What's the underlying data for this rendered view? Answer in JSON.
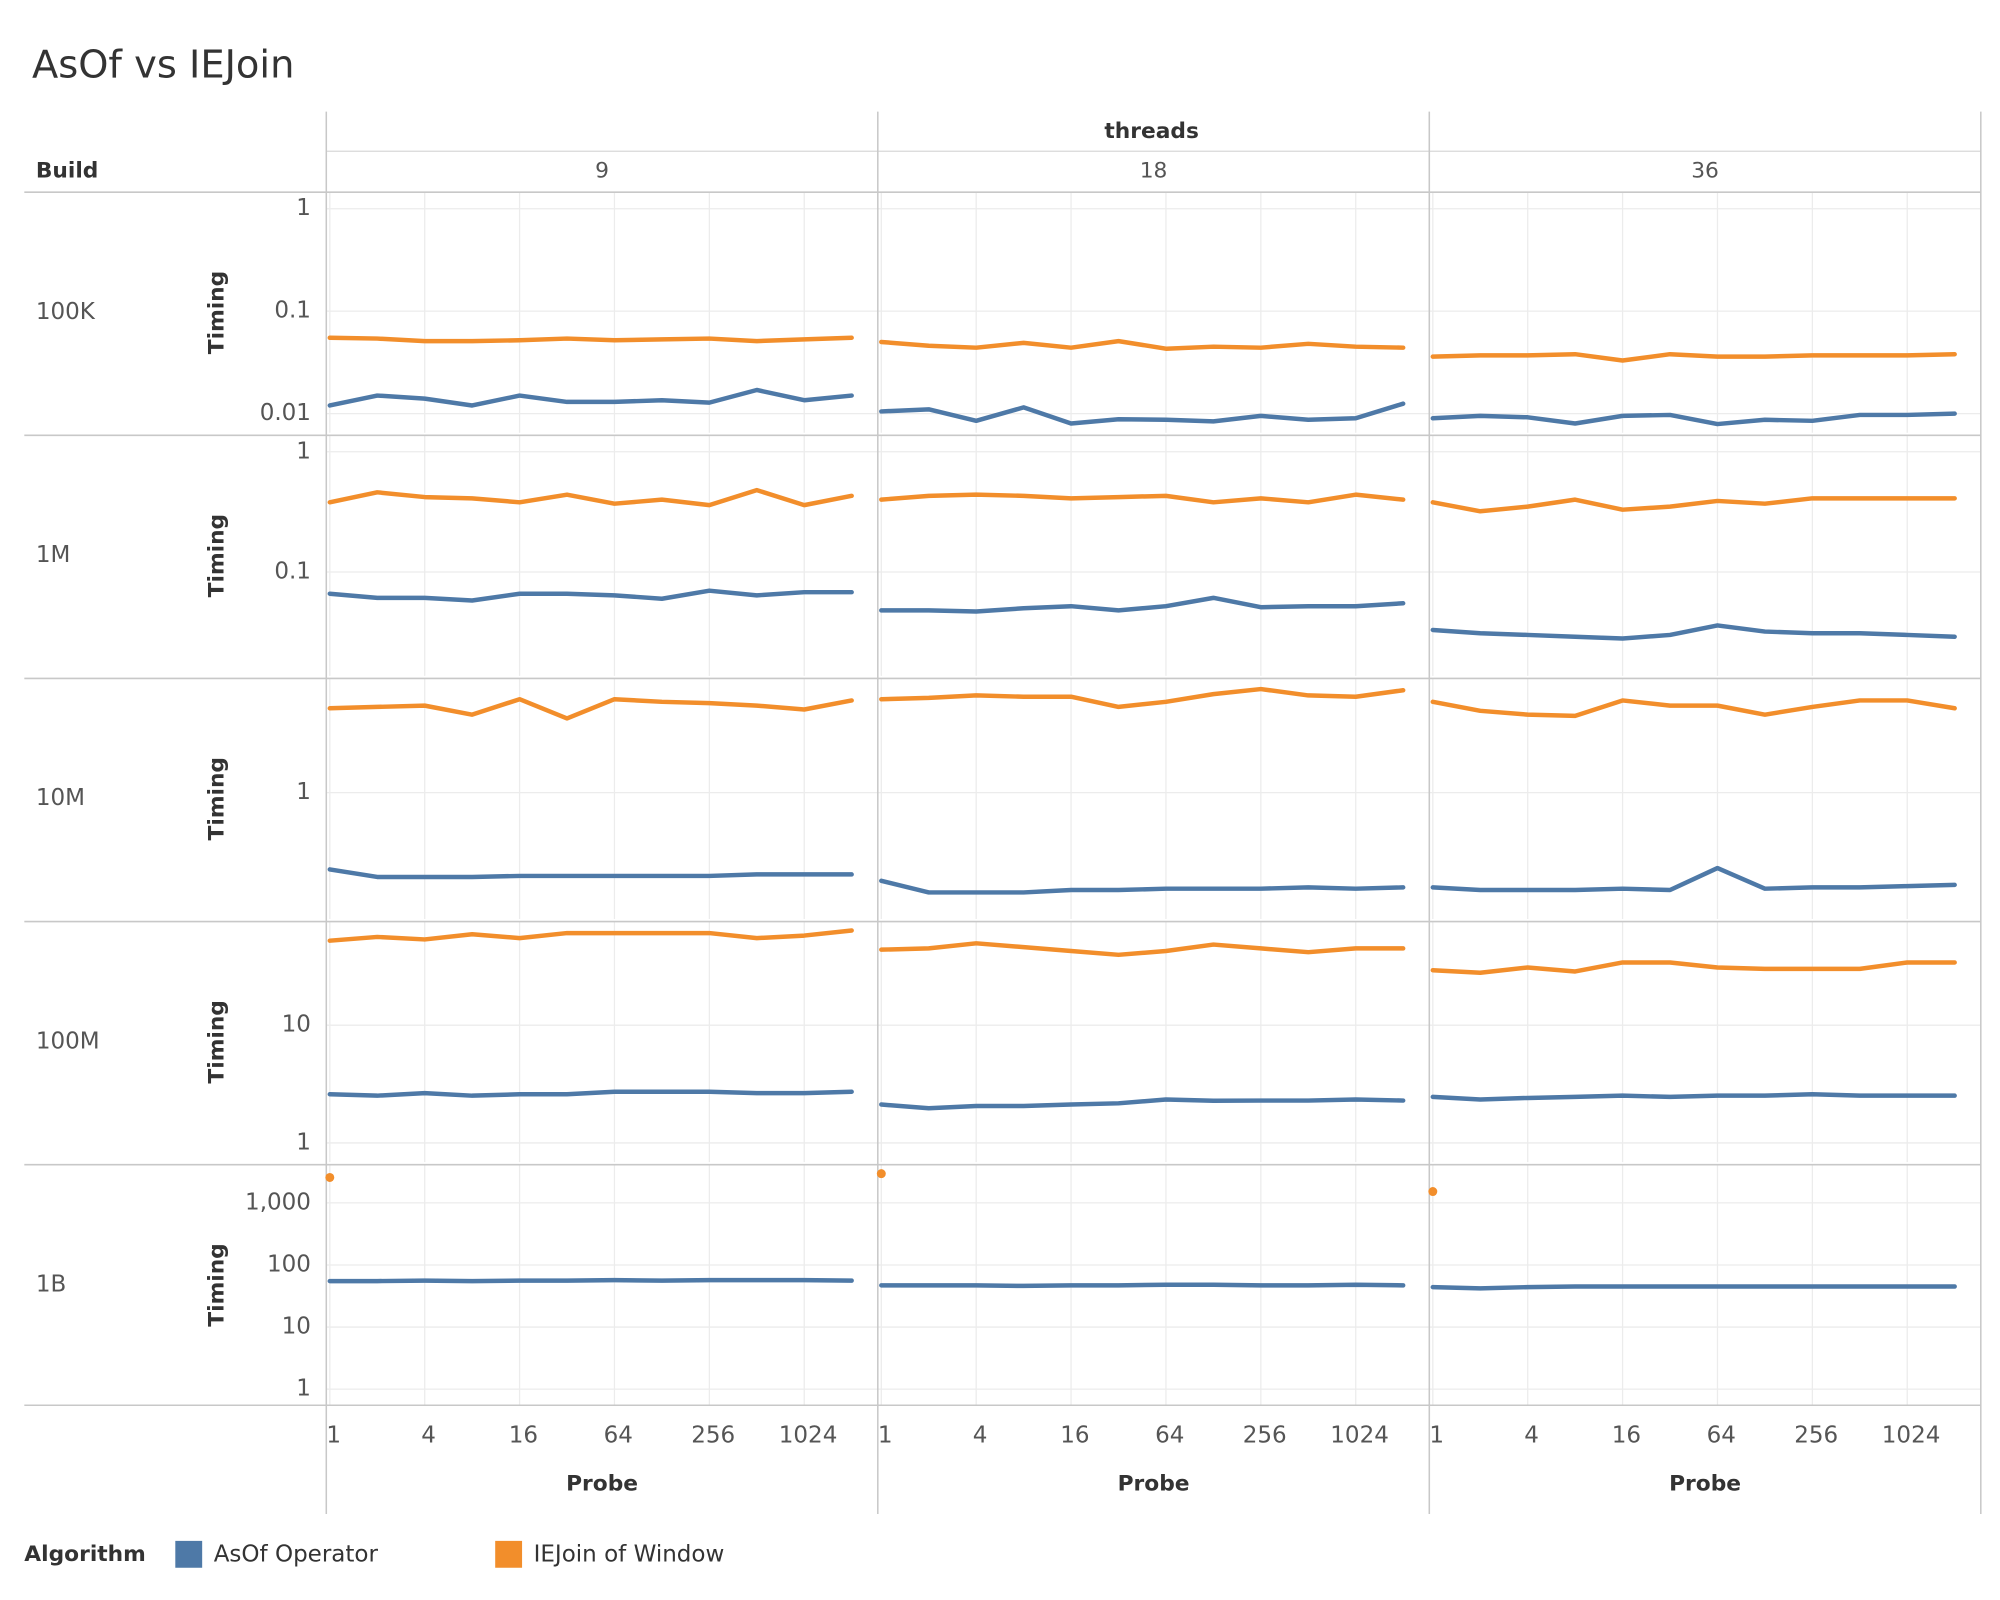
{
  "chart_data": {
    "type": "line",
    "title": "AsOf vs IEJoin",
    "column_title": "threads",
    "row_title": "Build",
    "xlabel": "Probe",
    "ylabel": "Timing",
    "legend_title": "Algorithm",
    "log_scale": {
      "x": true,
      "y": true
    },
    "grid": true,
    "series": [
      {
        "name": "AsOf Operator",
        "color": "#4e79a7"
      },
      {
        "name": "IEJoin of Window",
        "color": "#f28e2b"
      }
    ],
    "x": [
      1,
      2,
      4,
      8,
      16,
      32,
      64,
      128,
      256,
      512,
      1024,
      2048
    ],
    "xlim": [
      0.95,
      3000
    ],
    "xticks": [
      1,
      4,
      16,
      64,
      256,
      1024
    ],
    "columns": [
      "9",
      "18",
      "36"
    ],
    "rows": [
      {
        "name": "100K",
        "ylim": [
          0.0065,
          1.45
        ],
        "yticks": [
          0.01,
          0.1,
          1
        ],
        "panels": [
          [
            [
              0.012,
              0.015,
              0.014,
              0.012,
              0.015,
              0.013,
              0.013,
              0.0135,
              0.0128,
              0.017,
              0.0135,
              0.015
            ],
            [
              0.055,
              0.054,
              0.051,
              0.051,
              0.052,
              0.054,
              0.052,
              0.053,
              0.054,
              0.051,
              0.053,
              0.055
            ]
          ],
          [
            [
              0.0105,
              0.011,
              0.0085,
              0.0115,
              0.008,
              0.0088,
              0.0087,
              0.0084,
              0.0095,
              0.0087,
              0.009,
              0.0125
            ],
            [
              0.05,
              0.046,
              0.044,
              0.049,
              0.044,
              0.051,
              0.043,
              0.045,
              0.044,
              0.048,
              0.045,
              0.044
            ]
          ],
          [
            [
              0.009,
              0.0095,
              0.0092,
              0.008,
              0.0095,
              0.0097,
              0.0079,
              0.0087,
              0.0085,
              0.0097,
              0.0097,
              0.01
            ],
            [
              0.036,
              0.037,
              0.037,
              0.038,
              0.033,
              0.038,
              0.036,
              0.036,
              0.037,
              0.037,
              0.037,
              0.038
            ]
          ]
        ]
      },
      {
        "name": "1M",
        "ylim": [
          0.0137,
          1.37
        ],
        "yticks": [
          0.1,
          1
        ],
        "panels": [
          [
            [
              0.066,
              0.061,
              0.061,
              0.058,
              0.066,
              0.066,
              0.064,
              0.06,
              0.07,
              0.064,
              0.068,
              0.068
            ],
            [
              0.38,
              0.46,
              0.42,
              0.41,
              0.38,
              0.44,
              0.37,
              0.4,
              0.36,
              0.48,
              0.36,
              0.43
            ]
          ],
          [
            [
              0.048,
              0.048,
              0.047,
              0.05,
              0.052,
              0.048,
              0.052,
              0.061,
              0.051,
              0.052,
              0.052,
              0.055
            ],
            [
              0.4,
              0.43,
              0.44,
              0.43,
              0.41,
              0.42,
              0.43,
              0.38,
              0.41,
              0.38,
              0.44,
              0.4
            ]
          ],
          [
            [
              0.033,
              0.031,
              0.03,
              0.029,
              0.028,
              0.03,
              0.036,
              0.032,
              0.031,
              0.031,
              0.03,
              0.029
            ],
            [
              0.38,
              0.32,
              0.35,
              0.4,
              0.33,
              0.35,
              0.39,
              0.37,
              0.41,
              0.41,
              0.41,
              0.41
            ]
          ]
        ]
      },
      {
        "name": "10M",
        "ylim": [
          0.089,
          8.9
        ],
        "yticks": [
          1
        ],
        "panels": [
          [
            [
              0.23,
              0.199,
              0.199,
              0.199,
              0.203,
              0.203,
              0.203,
              0.203,
              0.203,
              0.209,
              0.209,
              0.209
            ],
            [
              5.03,
              5.16,
              5.29,
              4.45,
              5.98,
              4.14,
              5.98,
              5.69,
              5.55,
              5.29,
              4.91,
              5.84
            ]
          ],
          [
            [
              0.185,
              0.148,
              0.148,
              0.148,
              0.155,
              0.155,
              0.159,
              0.159,
              0.159,
              0.163,
              0.159,
              0.163
            ],
            [
              5.98,
              6.13,
              6.43,
              6.27,
              6.27,
              5.16,
              5.69,
              6.59,
              7.26,
              6.43,
              6.27,
              7.1
            ]
          ],
          [
            [
              0.163,
              0.155,
              0.155,
              0.155,
              0.159,
              0.155,
              0.236,
              0.159,
              0.163,
              0.163,
              0.167,
              0.171
            ],
            [
              5.69,
              4.79,
              4.45,
              4.35,
              5.84,
              5.29,
              5.29,
              4.45,
              5.16,
              5.84,
              5.84,
              5.03
            ]
          ]
        ]
      },
      {
        "name": "100M",
        "ylim": [
          0.687,
          75.9
        ],
        "yticks": [
          1,
          10
        ],
        "panels": [
          [
            [
              2.59,
              2.52,
              2.65,
              2.52,
              2.59,
              2.59,
              2.72,
              2.72,
              2.72,
              2.65,
              2.65,
              2.72
            ],
            [
              52.2,
              56.2,
              53.5,
              59.2,
              54.9,
              60.6,
              60.6,
              60.6,
              60.6,
              54.9,
              57.7,
              63.7
            ]
          ],
          [
            [
              2.12,
              1.97,
              2.06,
              2.06,
              2.12,
              2.17,
              2.34,
              2.28,
              2.29,
              2.29,
              2.34,
              2.29
            ],
            [
              43.8,
              44.9,
              49.6,
              46.0,
              42.7,
              39.6,
              42.7,
              48.4,
              44.9,
              41.7,
              44.9,
              44.9
            ]
          ],
          [
            [
              2.46,
              2.34,
              2.41,
              2.46,
              2.52,
              2.46,
              2.52,
              2.52,
              2.59,
              2.52,
              2.52,
              2.52
            ],
            [
              29.3,
              27.9,
              30.9,
              28.6,
              34.1,
              34.1,
              30.9,
              30.1,
              30.1,
              30.1,
              34.1,
              34.1
            ]
          ]
        ]
      },
      {
        "name": "1B",
        "ylim": [
          0.55,
          4130
        ],
        "yticks": [
          1,
          10,
          100,
          {
            "value": 1000,
            "label": "1,000"
          }
        ],
        "panels": [
          [
            [
              55,
              55,
              56,
              55,
              56,
              56,
              57,
              56,
              57,
              57,
              57,
              56
            ],
            [
              2570,
              null,
              null,
              null,
              null,
              null,
              null,
              null,
              null,
              null,
              null,
              null
            ]
          ],
          [
            [
              47,
              47,
              47,
              46,
              47,
              47,
              48,
              48,
              47,
              47,
              48,
              47
            ],
            [
              2960,
              null,
              null,
              null,
              null,
              null,
              null,
              null,
              null,
              null,
              null,
              null
            ]
          ],
          [
            [
              44,
              42,
              44,
              45,
              45,
              45,
              45,
              45,
              45,
              45,
              45,
              45
            ],
            [
              1525,
              null,
              null,
              null,
              null,
              null,
              null,
              null,
              null,
              null,
              null,
              null
            ]
          ]
        ]
      }
    ]
  }
}
